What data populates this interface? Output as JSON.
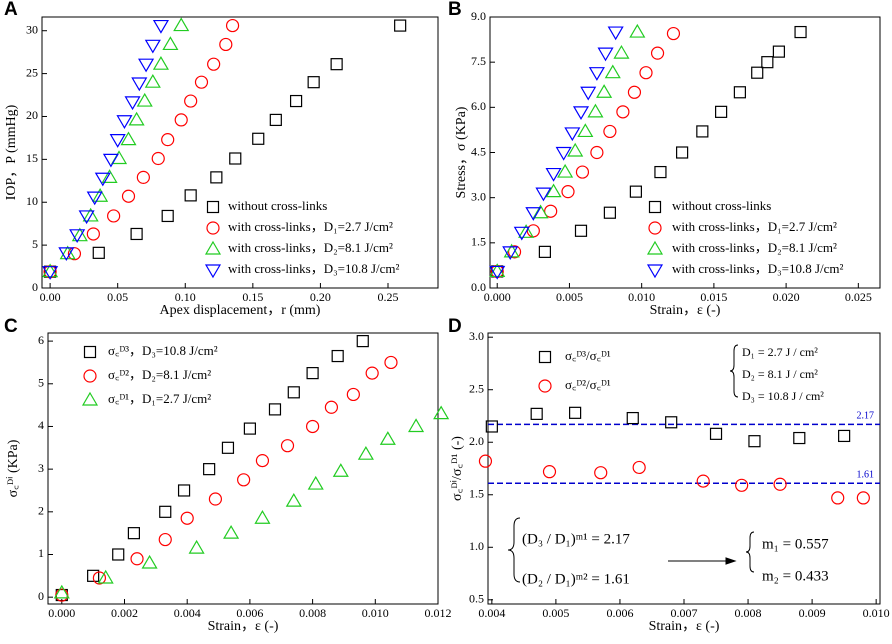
{
  "chart_data": [
    {
      "type": "scatter",
      "label": "A",
      "xlabel": "Apex displacement，r (mm)",
      "ylabel": "IOP，P (mmHg)",
      "xlim": [
        -0.006,
        0.287
      ],
      "ylim": [
        0,
        31.6
      ],
      "xticks": [
        {
          "value": 0,
          "label": "0.00"
        },
        {
          "value": 0.05,
          "label": "0.05"
        },
        {
          "value": 0.1,
          "label": "0.10"
        },
        {
          "value": 0.15,
          "label": "0.15"
        },
        {
          "value": 0.2,
          "label": "0.20"
        },
        {
          "value": 0.25,
          "label": "0.25"
        }
      ],
      "yticks": [
        0,
        5,
        10,
        15,
        20,
        25,
        30
      ],
      "legend": "lower right",
      "series": [
        {
          "name": "without cross-links",
          "color": "#000000",
          "marker": "square",
          "x": [
            0,
            0.036,
            0.064,
            0.087,
            0.104,
            0.123,
            0.137,
            0.154,
            0.167,
            0.182,
            0.195,
            0.212,
            0.259
          ],
          "values": [
            1.9,
            4.1,
            6.3,
            8.4,
            10.8,
            12.9,
            15.1,
            17.4,
            19.6,
            21.8,
            24.0,
            26.1,
            30.6
          ]
        },
        {
          "name": "with cross-links，D₁=2.7 J/cm²",
          "color": "#ff0000",
          "marker": "circle",
          "x": [
            0,
            0.018,
            0.032,
            0.047,
            0.058,
            0.069,
            0.08,
            0.087,
            0.097,
            0.104,
            0.112,
            0.121,
            0.13,
            0.135
          ],
          "values": [
            1.9,
            4.0,
            6.3,
            8.4,
            10.7,
            12.9,
            15.1,
            17.3,
            19.6,
            21.8,
            24.0,
            26.1,
            28.4,
            30.6
          ]
        },
        {
          "name": "with cross-links，D₂=8.1 J/cm²",
          "color": "#22cc22",
          "marker": "triangle",
          "x": [
            0,
            0.013,
            0.022,
            0.03,
            0.037,
            0.044,
            0.051,
            0.058,
            0.064,
            0.07,
            0.076,
            0.082,
            0.089,
            0.097
          ],
          "values": [
            1.9,
            4.0,
            6.1,
            8.4,
            10.7,
            12.9,
            15.1,
            17.3,
            19.6,
            21.8,
            24.0,
            26.1,
            28.4,
            30.6
          ]
        },
        {
          "name": "with cross-links，D₃=10.8 J/cm²",
          "color": "#0000ff",
          "marker": "triangle-down",
          "x": [
            0,
            0.012,
            0.02,
            0.027,
            0.033,
            0.039,
            0.045,
            0.05,
            0.055,
            0.061,
            0.066,
            0.071,
            0.076,
            0.082
          ],
          "values": [
            1.9,
            4.1,
            6.2,
            8.4,
            10.6,
            12.8,
            15.0,
            17.3,
            19.5,
            21.7,
            23.9,
            26.1,
            28.3,
            30.6
          ]
        }
      ]
    },
    {
      "type": "scatter",
      "label": "B",
      "xlabel": "Strain，ε (-)",
      "ylabel": "Stress，σ (KPa)",
      "xlim": [
        -0.0005,
        0.0265
      ],
      "ylim": [
        0,
        9
      ],
      "xticks": [
        {
          "value": 0,
          "label": "0.000"
        },
        {
          "value": 0.005,
          "label": "0.005"
        },
        {
          "value": 0.01,
          "label": "0.010"
        },
        {
          "value": 0.015,
          "label": "0.015"
        },
        {
          "value": 0.02,
          "label": "0.020"
        },
        {
          "value": 0.025,
          "label": "0.025"
        }
      ],
      "yticks": [
        {
          "value": 0,
          "label": "0.0"
        },
        1.5,
        {
          "value": 3,
          "label": "3.0"
        },
        4.5,
        {
          "value": 6,
          "label": "6.0"
        },
        7.5,
        {
          "value": 9,
          "label": "9.0"
        }
      ],
      "legend": "lower right",
      "series": [
        {
          "name": "without cross-links",
          "color": "#000000",
          "marker": "square",
          "x": [
            0,
            0.0033,
            0.0058,
            0.0078,
            0.0096,
            0.0113,
            0.0128,
            0.0142,
            0.0155,
            0.0168,
            0.018,
            0.0187,
            0.0195,
            0.021
          ],
          "values": [
            0.55,
            1.2,
            1.9,
            2.5,
            3.2,
            3.85,
            4.5,
            5.2,
            5.85,
            6.5,
            7.15,
            7.5,
            7.85,
            8.5
          ]
        },
        {
          "name": "with cross-links，D₁=2.7 J/cm²",
          "color": "#ff0000",
          "marker": "circle",
          "x": [
            0,
            0.0012,
            0.0025,
            0.0037,
            0.0049,
            0.0059,
            0.0069,
            0.0078,
            0.0087,
            0.0095,
            0.0103,
            0.0111,
            0.0122
          ],
          "values": [
            0.55,
            1.2,
            1.9,
            2.55,
            3.2,
            3.85,
            4.5,
            5.2,
            5.85,
            6.5,
            7.15,
            7.8,
            8.45
          ]
        },
        {
          "name": "with cross-links，D₂=8.1 J/cm²",
          "color": "#22cc22",
          "marker": "triangle",
          "x": [
            0,
            0.001,
            0.002,
            0.003,
            0.0039,
            0.0047,
            0.0054,
            0.0061,
            0.0068,
            0.0074,
            0.008,
            0.0086,
            0.0097
          ],
          "values": [
            0.55,
            1.2,
            1.85,
            2.5,
            3.2,
            3.85,
            4.55,
            5.2,
            5.85,
            6.5,
            7.15,
            7.8,
            8.5
          ]
        },
        {
          "name": "with cross-links，D₃=10.8 J/cm²",
          "color": "#0000ff",
          "marker": "triangle-down",
          "x": [
            0,
            0.0009,
            0.0017,
            0.0025,
            0.0032,
            0.0039,
            0.0046,
            0.0052,
            0.0058,
            0.0063,
            0.0069,
            0.0075,
            0.0082
          ],
          "values": [
            0.55,
            1.2,
            1.85,
            2.5,
            3.15,
            3.8,
            4.5,
            5.15,
            5.85,
            6.5,
            7.15,
            7.8,
            8.5
          ]
        }
      ]
    },
    {
      "type": "scatter",
      "label": "C",
      "xlabel": "Strain，ε (-)",
      "ylabel": "σ꜀ᴰⁱ (KPa)",
      "xlim": [
        -0.00044,
        0.012
      ],
      "ylim": [
        -0.16,
        6.19
      ],
      "xticks": [
        {
          "value": 0,
          "label": "0.000"
        },
        {
          "value": 0.002,
          "label": "0.002"
        },
        {
          "value": 0.004,
          "label": "0.004"
        },
        {
          "value": 0.006,
          "label": "0.006"
        },
        {
          "value": 0.008,
          "label": "0.008"
        },
        {
          "value": 0.01,
          "label": "0.010"
        },
        {
          "value": 0.012,
          "label": "0.012"
        }
      ],
      "yticks": [
        0,
        1,
        2,
        3,
        4,
        5,
        6
      ],
      "legend": "upper left",
      "series": [
        {
          "name": "σ꜀ᴰ³，D₃=10.8 J/cm²",
          "color": "#000000",
          "marker": "square",
          "x": [
            0,
            0.001,
            0.0018,
            0.0023,
            0.0033,
            0.0039,
            0.0047,
            0.0053,
            0.006,
            0.0068,
            0.0074,
            0.008,
            0.0088,
            0.0096
          ],
          "values": [
            0.05,
            0.5,
            1.0,
            1.5,
            2.0,
            2.5,
            3.0,
            3.5,
            3.95,
            4.4,
            4.8,
            5.25,
            5.65,
            6.0
          ]
        },
        {
          "name": "σ꜀ᴰ²，D₂=8.1 J/cm²",
          "color": "#ff0000",
          "marker": "circle",
          "x": [
            0,
            0.0012,
            0.0024,
            0.0033,
            0.004,
            0.0049,
            0.0058,
            0.0064,
            0.0072,
            0.008,
            0.0086,
            0.0093,
            0.0099,
            0.0105
          ],
          "values": [
            0.05,
            0.45,
            0.9,
            1.35,
            1.85,
            2.3,
            2.75,
            3.2,
            3.55,
            4.0,
            4.45,
            4.75,
            5.25,
            5.5
          ]
        },
        {
          "name": "σ꜀ᴰ¹，D₁=2.7 J/cm²",
          "color": "#22cc22",
          "marker": "triangle",
          "x": [
            0,
            0.0014,
            0.0028,
            0.0043,
            0.0054,
            0.0064,
            0.0074,
            0.0081,
            0.0089,
            0.0097,
            0.0104,
            0.0113,
            0.0121
          ],
          "values": [
            0.1,
            0.45,
            0.8,
            1.15,
            1.5,
            1.85,
            2.25,
            2.65,
            2.95,
            3.35,
            3.7,
            4.0,
            4.3
          ]
        }
      ]
    },
    {
      "type": "scatter",
      "label": "D",
      "xlabel": "Strain，ε (-)",
      "ylabel": "σ꜀ᴰⁱ/σ꜀ᴰ¹ (-)",
      "xlim": [
        0.00394,
        0.01006
      ],
      "ylim": [
        0.46,
        3.04
      ],
      "xticks": [
        {
          "value": 0.004,
          "label": "0.004"
        },
        {
          "value": 0.005,
          "label": "0.005"
        },
        {
          "value": 0.006,
          "label": "0.006"
        },
        {
          "value": 0.007,
          "label": "0.007"
        },
        {
          "value": 0.008,
          "label": "0.008"
        },
        {
          "value": 0.009,
          "label": "0.009"
        },
        {
          "value": 0.01,
          "label": "0.010"
        }
      ],
      "yticks": [
        0.5,
        {
          "value": 1,
          "label": "1.0"
        },
        1.5,
        {
          "value": 2,
          "label": "2.0"
        },
        2.5,
        {
          "value": 3,
          "label": "3.0"
        }
      ],
      "legend": "upper left",
      "hlines": [
        {
          "value": 2.17,
          "color": "#0000cc"
        },
        {
          "value": 1.61,
          "color": "#0000cc"
        }
      ],
      "annotations": [
        "D₁ = 2.7 J / cm²",
        "D₂ = 8.1 J / cm²",
        "D₃ = 10.8 J / cm²",
        "(D₃ / D₁)ᵐ¹ = 2.17",
        "(D₂ / D₁)ᵐ² = 1.61",
        "m₁ = 0.557",
        "m₂ = 0.433"
      ],
      "series": [
        {
          "name": "σ꜀ᴰ³/σ꜀ᴰ¹",
          "color": "#000000",
          "marker": "square",
          "x": [
            0.004,
            0.0047,
            0.0053,
            0.0062,
            0.0068,
            0.0075,
            0.0081,
            0.0088,
            0.0095
          ],
          "values": [
            2.15,
            2.27,
            2.28,
            2.23,
            2.19,
            2.08,
            2.01,
            2.04,
            2.06
          ]
        },
        {
          "name": "σ꜀ᴰ²/σ꜀ᴰ¹",
          "color": "#ff0000",
          "marker": "circle",
          "x": [
            0.0039,
            0.0049,
            0.0057,
            0.0063,
            0.0073,
            0.0079,
            0.0085,
            0.0094,
            0.0098
          ],
          "values": [
            1.82,
            1.72,
            1.71,
            1.76,
            1.63,
            1.59,
            1.6,
            1.47,
            1.47
          ]
        }
      ]
    }
  ]
}
